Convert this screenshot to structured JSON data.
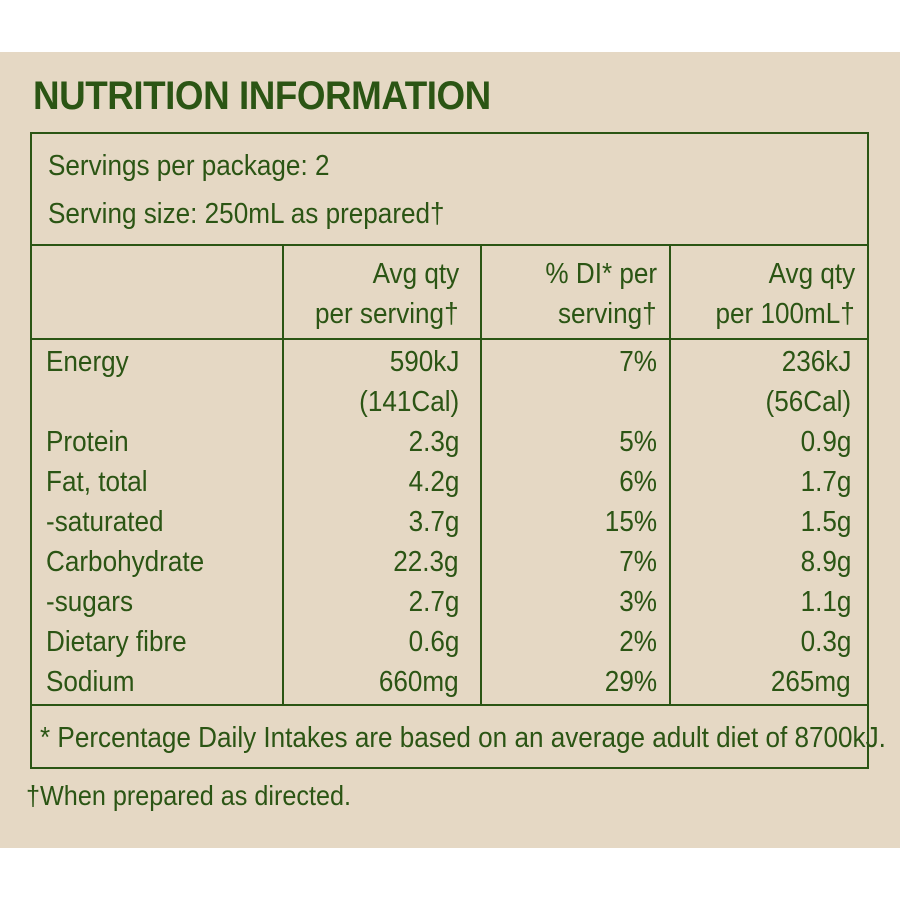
{
  "title": "NUTRITION INFORMATION",
  "servings_per_package": "Servings per package: 2",
  "serving_size": "Serving size: 250mL as prepared†",
  "headers": {
    "col1_line1": "Avg qty",
    "col1_line2": "per serving†",
    "col2_line1": "% DI* per",
    "col2_line2": "serving†",
    "col3_line1": "Avg qty",
    "col3_line2": "per 100mL†"
  },
  "rows": [
    {
      "name": "Energy",
      "per_serving": "590kJ",
      "per_serving_cal": "(141Cal)",
      "di": "7%",
      "per_100": "236kJ",
      "per_100_cal": "(56Cal)"
    },
    {
      "name": "Protein",
      "per_serving": "2.3g",
      "di": "5%",
      "per_100": "0.9g"
    },
    {
      "name": "Fat, total",
      "per_serving": "4.2g",
      "di": "6%",
      "per_100": "1.7g"
    },
    {
      "name": "-saturated",
      "per_serving": "3.7g",
      "di": "15%",
      "per_100": "1.5g"
    },
    {
      "name": "Carbohydrate",
      "per_serving": "22.3g",
      "di": "7%",
      "per_100": "8.9g"
    },
    {
      "name": "-sugars",
      "per_serving": "2.7g",
      "di": "3%",
      "per_100": "1.1g"
    },
    {
      "name": "Dietary fibre",
      "per_serving": "0.6g",
      "di": "2%",
      "per_100": "0.3g"
    },
    {
      "name": "Sodium",
      "per_serving": "660mg",
      "di": "29%",
      "per_100": "265mg"
    }
  ],
  "di_note": "* Percentage Daily Intakes are based on an average adult diet of 8700kJ.",
  "prepared_note": "†When prepared as directed.",
  "colors": {
    "text": "#2b5514",
    "background": "#e5d8c4"
  }
}
